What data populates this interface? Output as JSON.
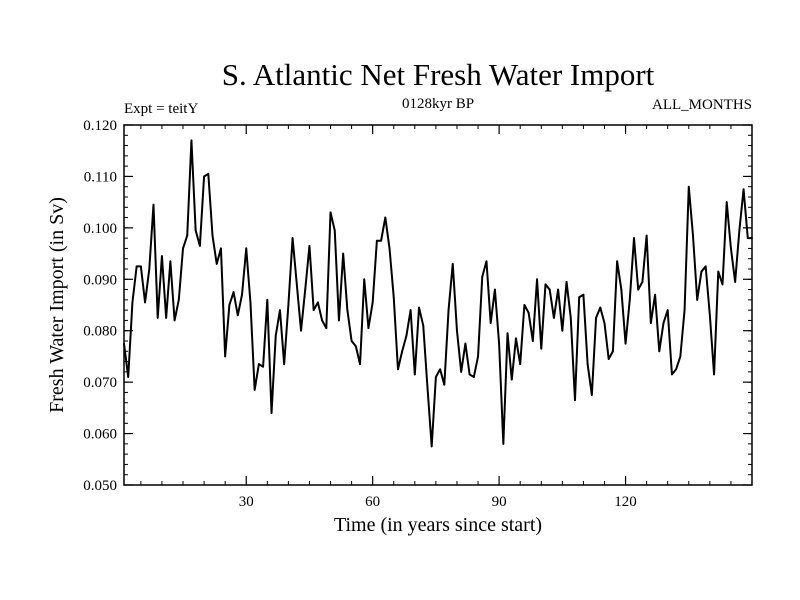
{
  "chart_data": {
    "type": "line",
    "title": "S. Atlantic Net Fresh Water Import",
    "subtitle_left": "Expt = teitY",
    "subtitle_center": "0128kyr BP",
    "subtitle_right": "ALL_MONTHS",
    "xlabel": "Time (in years since start)",
    "ylabel": "Fresh Water Import (in Sv)",
    "xlim": [
      1,
      150
    ],
    "ylim": [
      0.05,
      0.12
    ],
    "x_ticks": [
      30,
      60,
      90,
      120
    ],
    "x_tick_labels": [
      "30",
      "60",
      "90",
      "120"
    ],
    "y_ticks": [
      0.05,
      0.06,
      0.07,
      0.08,
      0.09,
      0.1,
      0.11,
      0.12
    ],
    "y_tick_labels": [
      "0.050",
      "0.060",
      "0.070",
      "0.080",
      "0.090",
      "0.100",
      "0.110",
      "0.120"
    ],
    "line_color": "#000000",
    "series": [
      {
        "name": "Net Fresh Water Import",
        "x_start": 1,
        "x_step": 1,
        "values": [
          0.0775,
          0.071,
          0.0855,
          0.0925,
          0.0925,
          0.0855,
          0.092,
          0.1045,
          0.0825,
          0.0945,
          0.0825,
          0.0935,
          0.082,
          0.086,
          0.096,
          0.0985,
          0.117,
          0.0995,
          0.0965,
          0.11,
          0.1105,
          0.0985,
          0.093,
          0.096,
          0.075,
          0.085,
          0.0875,
          0.083,
          0.087,
          0.096,
          0.0855,
          0.0685,
          0.0735,
          0.073,
          0.086,
          0.064,
          0.079,
          0.084,
          0.0735,
          0.085,
          0.098,
          0.089,
          0.08,
          0.088,
          0.0965,
          0.084,
          0.0855,
          0.082,
          0.0805,
          0.103,
          0.0995,
          0.082,
          0.095,
          0.084,
          0.078,
          0.077,
          0.0735,
          0.09,
          0.0805,
          0.0855,
          0.0975,
          0.0975,
          0.102,
          0.096,
          0.0865,
          0.0725,
          0.076,
          0.079,
          0.084,
          0.0715,
          0.0845,
          0.081,
          0.069,
          0.0575,
          0.071,
          0.0725,
          0.0695,
          0.084,
          0.093,
          0.08,
          0.072,
          0.0775,
          0.0715,
          0.071,
          0.075,
          0.0905,
          0.0935,
          0.0815,
          0.088,
          0.0775,
          0.058,
          0.0795,
          0.0705,
          0.0785,
          0.0735,
          0.085,
          0.0835,
          0.078,
          0.09,
          0.0765,
          0.089,
          0.088,
          0.0825,
          0.088,
          0.08,
          0.0895,
          0.0825,
          0.0665,
          0.0865,
          0.087,
          0.0735,
          0.0675,
          0.0825,
          0.0845,
          0.0815,
          0.0745,
          0.076,
          0.0935,
          0.088,
          0.0775,
          0.086,
          0.098,
          0.088,
          0.0895,
          0.0985,
          0.0815,
          0.087,
          0.076,
          0.0815,
          0.084,
          0.0715,
          0.0725,
          0.075,
          0.084,
          0.108,
          0.0985,
          0.086,
          0.0915,
          0.0925,
          0.083,
          0.0715,
          0.0915,
          0.089,
          0.105,
          0.096,
          0.0895,
          0.0995,
          0.1075,
          0.098,
          0.098
        ]
      }
    ]
  }
}
